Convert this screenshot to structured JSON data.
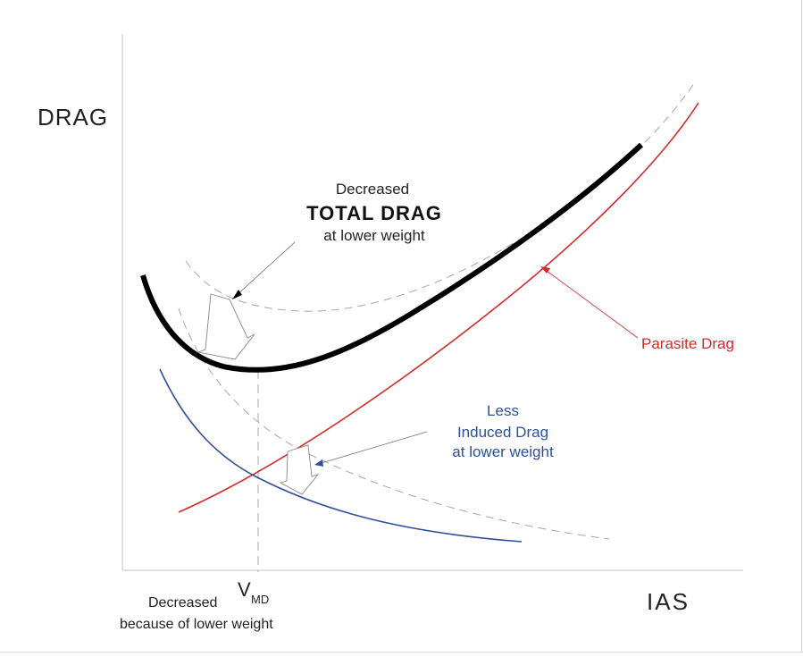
{
  "axes": {
    "y_label": "DRAG",
    "x_label": "IAS"
  },
  "annotations": {
    "total_drag": {
      "line1": "Decreased",
      "line2": "TOTAL  DRAG",
      "line3": "at  lower  weight"
    },
    "parasite": {
      "label": "Parasite  Drag"
    },
    "induced": {
      "line1": "Less",
      "line2": "Induced  Drag",
      "line3": "at  lower  weight"
    },
    "vmd": {
      "symbol": "V",
      "subscript": "MD",
      "prefix": "Decreased",
      "suffix": "because of lower weight"
    }
  },
  "colors": {
    "total_drag": "#000000",
    "parasite_drag": "#d42a2a",
    "induced_drag": "#2d4f9c",
    "dashed": "#a8a8a8",
    "axis": "#cfcfcf",
    "text": "#222222"
  }
}
